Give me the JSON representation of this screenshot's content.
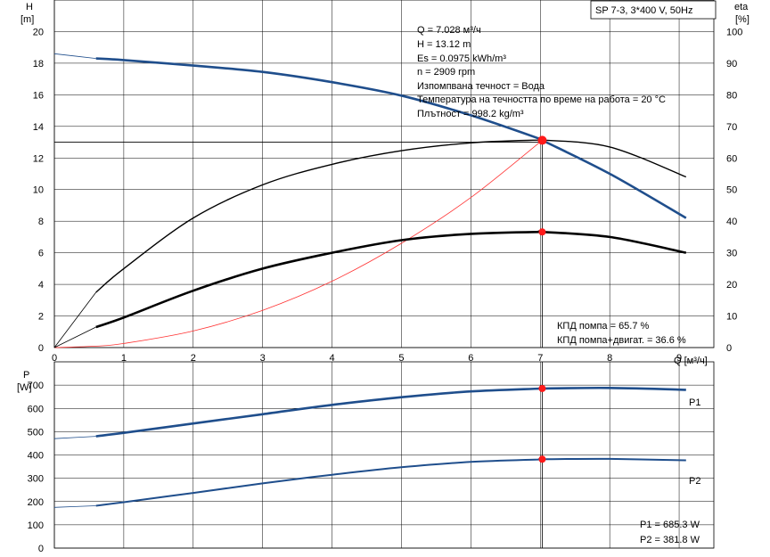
{
  "title": "SP 7-3, 3*400 V, 50Hz",
  "colors": {
    "head_curve": "#1f4e8c",
    "power_curve": "#1f4e8c",
    "operating_point": "#ff1a1a",
    "system_curve": "#ff3333",
    "efficiency_curve": "#000000"
  },
  "operating_info": [
    "Q = 7.028 м³/ч",
    "H = 13.12 m",
    "Es = 0.0975 kWh/m³",
    "n = 2909 rpm",
    "Изпомпвана течност = Вода",
    "Температура на течността по време на работа = 20 °C",
    "Плътност = 998.2 kg/m³"
  ],
  "efficiency_info": [
    "КПД помпа = 65.7 %",
    "КПД помпа+двигат. = 36.6 %"
  ],
  "power_info": [
    "P1 = 685.3 W",
    "P2 = 381.8 W"
  ],
  "chart_data": [
    {
      "type": "line",
      "xlabel": "Q [м³/ч]",
      "ylabel_left": [
        "H",
        "[m]"
      ],
      "ylabel_right": [
        "eta",
        "[%]"
      ],
      "xlim": [
        0,
        9.5
      ],
      "ylim_left": [
        0,
        22
      ],
      "ylim_right": [
        0,
        110
      ],
      "x_ticks": [
        0,
        1,
        2,
        3,
        4,
        5,
        6,
        7,
        8,
        9
      ],
      "y_ticks_left": [
        0,
        2,
        4,
        6,
        8,
        10,
        12,
        14,
        16,
        18,
        20
      ],
      "y_ticks_right": [
        0,
        10,
        20,
        30,
        40,
        50,
        60,
        70,
        80,
        90,
        100
      ],
      "grid": true,
      "series": [
        {
          "axis": "left",
          "x": [
            0,
            0.6,
            1,
            2,
            3,
            4,
            5,
            6,
            7,
            7.028,
            8,
            9.1
          ],
          "y": [
            18.6,
            18.3,
            18.2,
            17.85,
            17.45,
            16.8,
            15.95,
            14.7,
            13.2,
            13.12,
            11.0,
            8.2
          ]
        },
        {
          "axis": "right",
          "x": [
            0,
            0.6,
            1,
            2,
            3,
            4,
            5,
            6,
            7,
            7.028,
            8,
            9.1
          ],
          "y": [
            0,
            17.5,
            25,
            41,
            51.5,
            58,
            62.3,
            64.8,
            65.7,
            65.7,
            63.5,
            54
          ]
        },
        {
          "axis": "right",
          "x": [
            0,
            0.6,
            1,
            2,
            3,
            4,
            5,
            6,
            7,
            7.028,
            8,
            9.1
          ],
          "y": [
            0,
            6.5,
            9.5,
            18,
            25,
            30,
            34,
            36,
            36.6,
            36.6,
            35,
            30
          ]
        },
        {
          "axis": "left",
          "x": [
            0,
            0.6,
            1,
            2,
            3,
            4,
            5,
            6,
            7.028
          ],
          "y": [
            0,
            0.09,
            0.26,
            1.05,
            2.36,
            4.2,
            6.6,
            9.5,
            13.12
          ]
        }
      ],
      "points": [
        {
          "axis": "left",
          "x": 7.028,
          "y": 13.12
        },
        {
          "axis": "right",
          "x": 7.028,
          "y": 36.6
        }
      ],
      "crosshair": {
        "x": 7.028,
        "y": 13.0
      }
    },
    {
      "type": "line",
      "ylabel": [
        "P",
        "[W]"
      ],
      "xlim": [
        0,
        9.5
      ],
      "ylim": [
        0,
        800
      ],
      "x_ticks": [
        0,
        1,
        2,
        3,
        4,
        5,
        6,
        7,
        8,
        9
      ],
      "y_ticks": [
        0,
        100,
        200,
        300,
        400,
        500,
        600,
        700
      ],
      "grid": true,
      "series": [
        {
          "name": "P1",
          "x": [
            0,
            0.6,
            1,
            2,
            3,
            4,
            5,
            6,
            7,
            7.028,
            8,
            9.1
          ],
          "y": [
            470,
            480,
            495,
            535,
            575,
            615,
            648,
            673,
            685,
            685.3,
            688,
            680
          ]
        },
        {
          "name": "P2",
          "x": [
            0,
            0.6,
            1,
            2,
            3,
            4,
            5,
            6,
            7,
            7.028,
            8,
            9.1
          ],
          "y": [
            175,
            182,
            197,
            237,
            278,
            315,
            347,
            370,
            381,
            381.8,
            383,
            377
          ]
        }
      ],
      "points": [
        {
          "x": 7.028,
          "y": 685.3
        },
        {
          "x": 7.028,
          "y": 381.8
        }
      ]
    }
  ]
}
